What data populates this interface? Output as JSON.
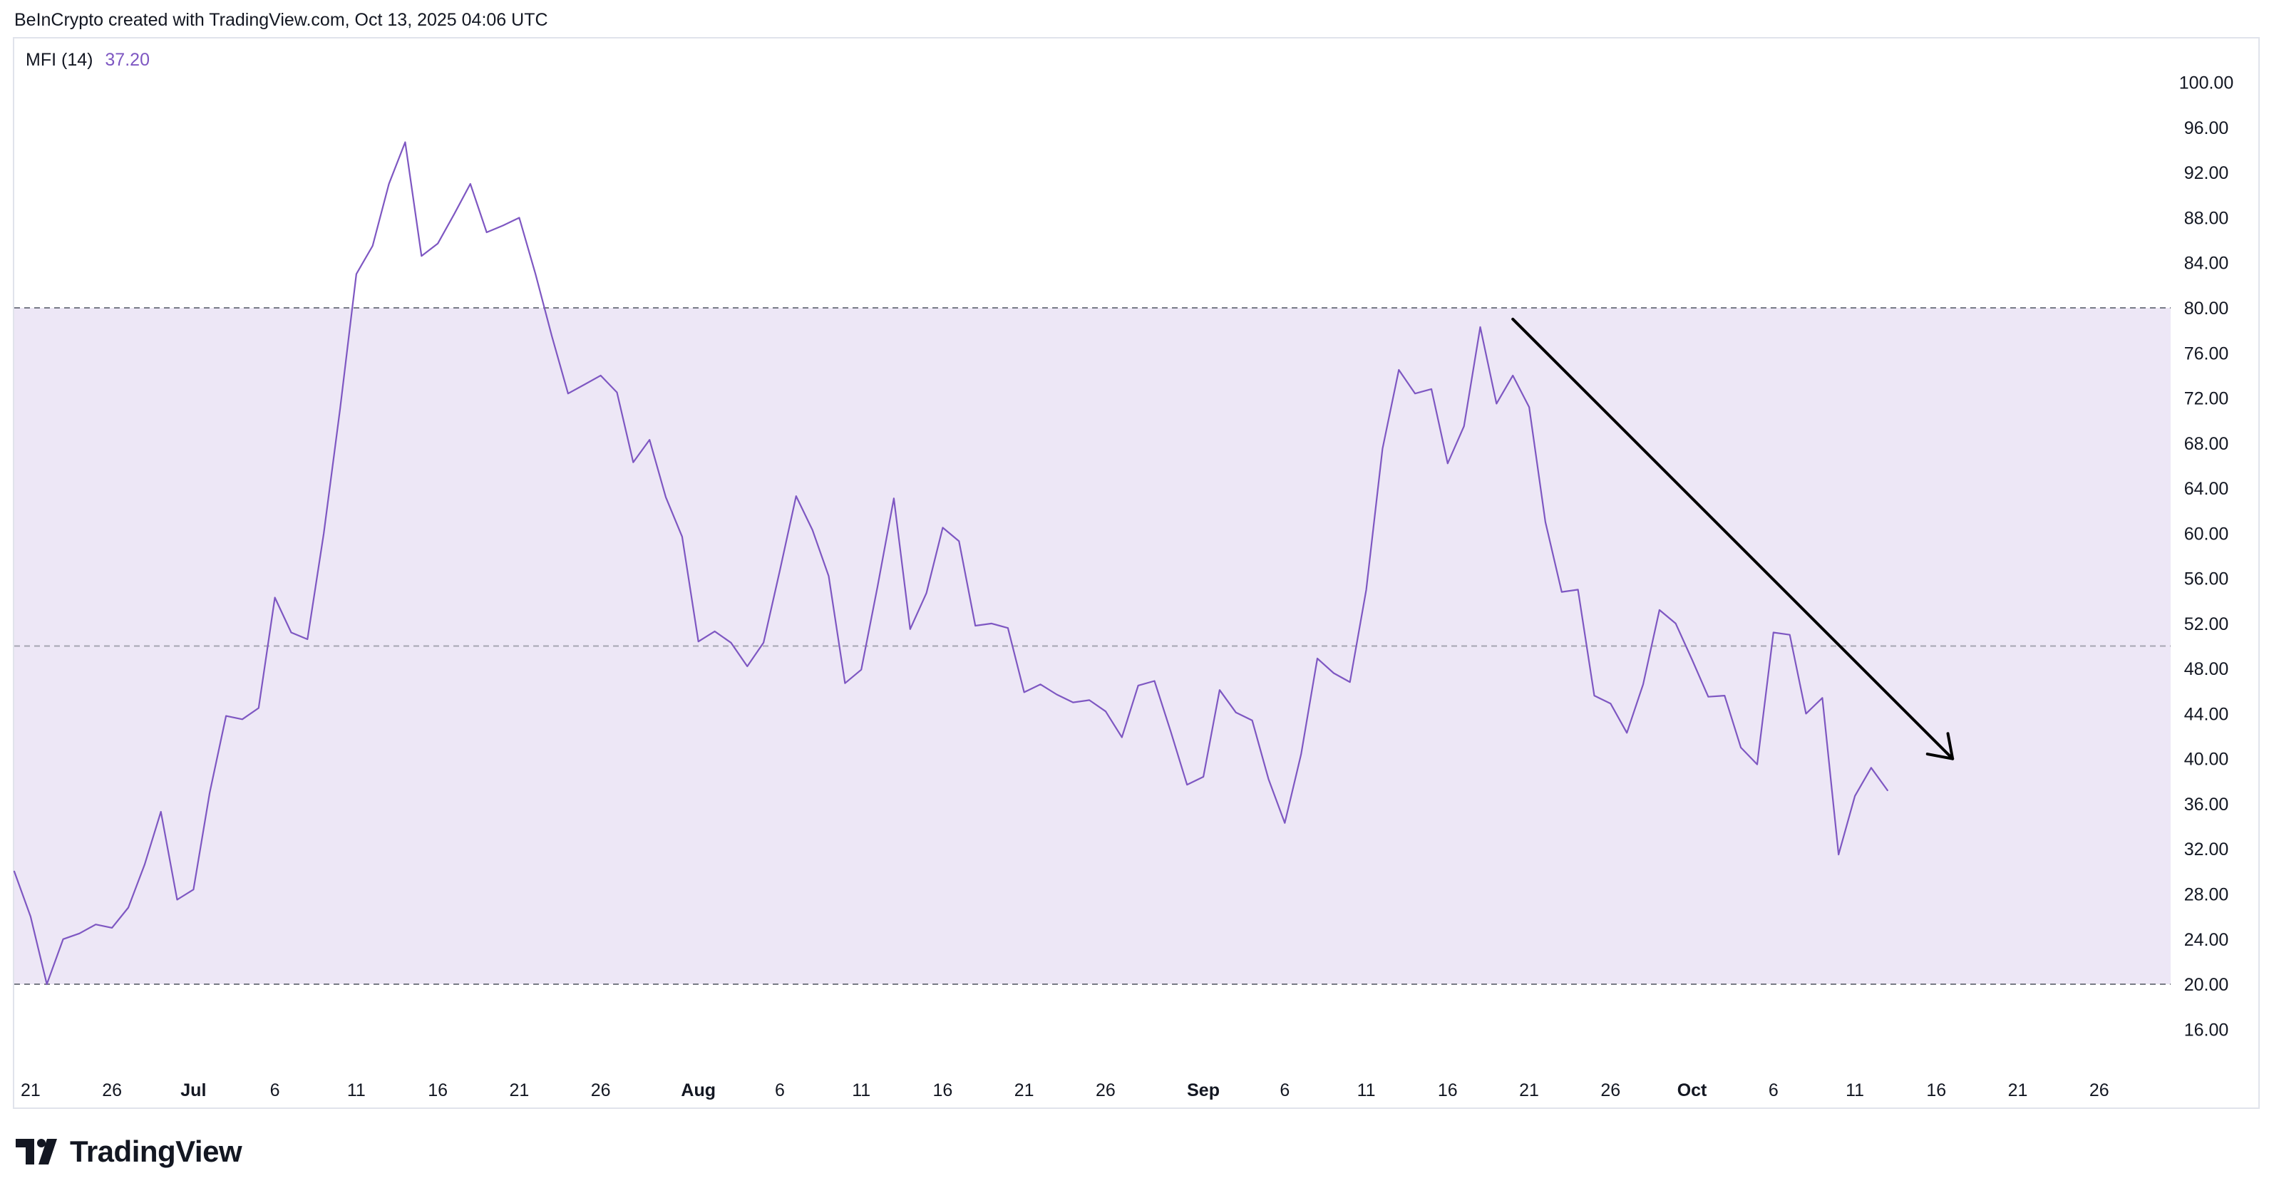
{
  "header": {
    "attribution": "BeInCrypto created with TradingView.com, Oct 13, 2025 04:06 UTC"
  },
  "legend": {
    "name": "MFI (14)",
    "value": "37.20"
  },
  "footer": {
    "brand": "TradingView",
    "logo_icon": "tradingview-logo-icon"
  },
  "colors": {
    "line": "#7e57c2",
    "band_fill": "#ede7f6",
    "band_lines": "#787b86",
    "arrow": "#000000",
    "text": "#131722",
    "border": "#e0e3eb"
  },
  "chart_data": {
    "type": "line",
    "title": "",
    "xlabel": "",
    "ylabel": "",
    "ylim": [
      13,
      102
    ],
    "yticks": [
      "100.00",
      "96.00",
      "92.00",
      "88.00",
      "84.00",
      "80.00",
      "76.00",
      "72.00",
      "68.00",
      "64.00",
      "60.00",
      "56.00",
      "52.00",
      "48.00",
      "44.00",
      "40.00",
      "36.00",
      "32.00",
      "28.00",
      "24.00",
      "20.00",
      "16.00"
    ],
    "xticks": [
      {
        "label": "21",
        "bold": false
      },
      {
        "label": "26",
        "bold": false
      },
      {
        "label": "Jul",
        "bold": true
      },
      {
        "label": "6",
        "bold": false
      },
      {
        "label": "11",
        "bold": false
      },
      {
        "label": "16",
        "bold": false
      },
      {
        "label": "21",
        "bold": false
      },
      {
        "label": "26",
        "bold": false
      },
      {
        "label": "Aug",
        "bold": true
      },
      {
        "label": "6",
        "bold": false
      },
      {
        "label": "11",
        "bold": false
      },
      {
        "label": "16",
        "bold": false
      },
      {
        "label": "21",
        "bold": false
      },
      {
        "label": "26",
        "bold": false
      },
      {
        "label": "Sep",
        "bold": true
      },
      {
        "label": "6",
        "bold": false
      },
      {
        "label": "11",
        "bold": false
      },
      {
        "label": "16",
        "bold": false
      },
      {
        "label": "21",
        "bold": false
      },
      {
        "label": "26",
        "bold": false
      },
      {
        "label": "Oct",
        "bold": true
      },
      {
        "label": "6",
        "bold": false
      },
      {
        "label": "11",
        "bold": false
      },
      {
        "label": "16",
        "bold": false
      },
      {
        "label": "21",
        "bold": false
      },
      {
        "label": "26",
        "bold": false
      }
    ],
    "bands": {
      "upper": 80,
      "middle": 50,
      "lower": 20
    },
    "series": [
      {
        "name": "MFI (14)",
        "x_start": "2025-06-20",
        "values": [
          30.0,
          26.0,
          20.0,
          24.0,
          24.5,
          25.3,
          25.0,
          26.8,
          30.6,
          35.3,
          27.5,
          28.4,
          37.0,
          43.8,
          43.5,
          44.5,
          54.3,
          51.2,
          50.6,
          60.0,
          71.0,
          83.0,
          85.5,
          91.0,
          94.7,
          84.6,
          85.7,
          88.3,
          91.0,
          86.7,
          87.3,
          88.0,
          83.0,
          77.5,
          72.4,
          73.2,
          74.0,
          72.5,
          66.3,
          68.3,
          63.2,
          59.7,
          50.4,
          51.3,
          50.3,
          48.2,
          50.3,
          56.7,
          63.3,
          60.3,
          56.2,
          46.7,
          47.9,
          55.3,
          63.1,
          51.5,
          54.7,
          60.5,
          59.3,
          51.8,
          52.0,
          51.6,
          45.9,
          46.6,
          45.7,
          45.0,
          45.2,
          44.2,
          41.9,
          46.5,
          46.9,
          42.4,
          37.7,
          38.4,
          46.1,
          44.1,
          43.4,
          38.2,
          34.3,
          40.4,
          48.9,
          47.6,
          46.8,
          55.0,
          67.5,
          74.5,
          72.4,
          72.8,
          66.2,
          69.5,
          78.3,
          71.5,
          74.0,
          71.2,
          61.0,
          54.8,
          55.0,
          45.6,
          44.9,
          42.3,
          46.6,
          53.2,
          52.0,
          48.8,
          45.5,
          45.6,
          41.0,
          39.5,
          51.2,
          51.0,
          44.0,
          45.4,
          31.5,
          36.7,
          39.2,
          37.2
        ]
      }
    ],
    "annotations": [
      {
        "type": "arrow",
        "from": {
          "x": "2025-09-20",
          "y": 79
        },
        "to": {
          "x": "2025-10-17",
          "y": 40
        }
      }
    ]
  }
}
